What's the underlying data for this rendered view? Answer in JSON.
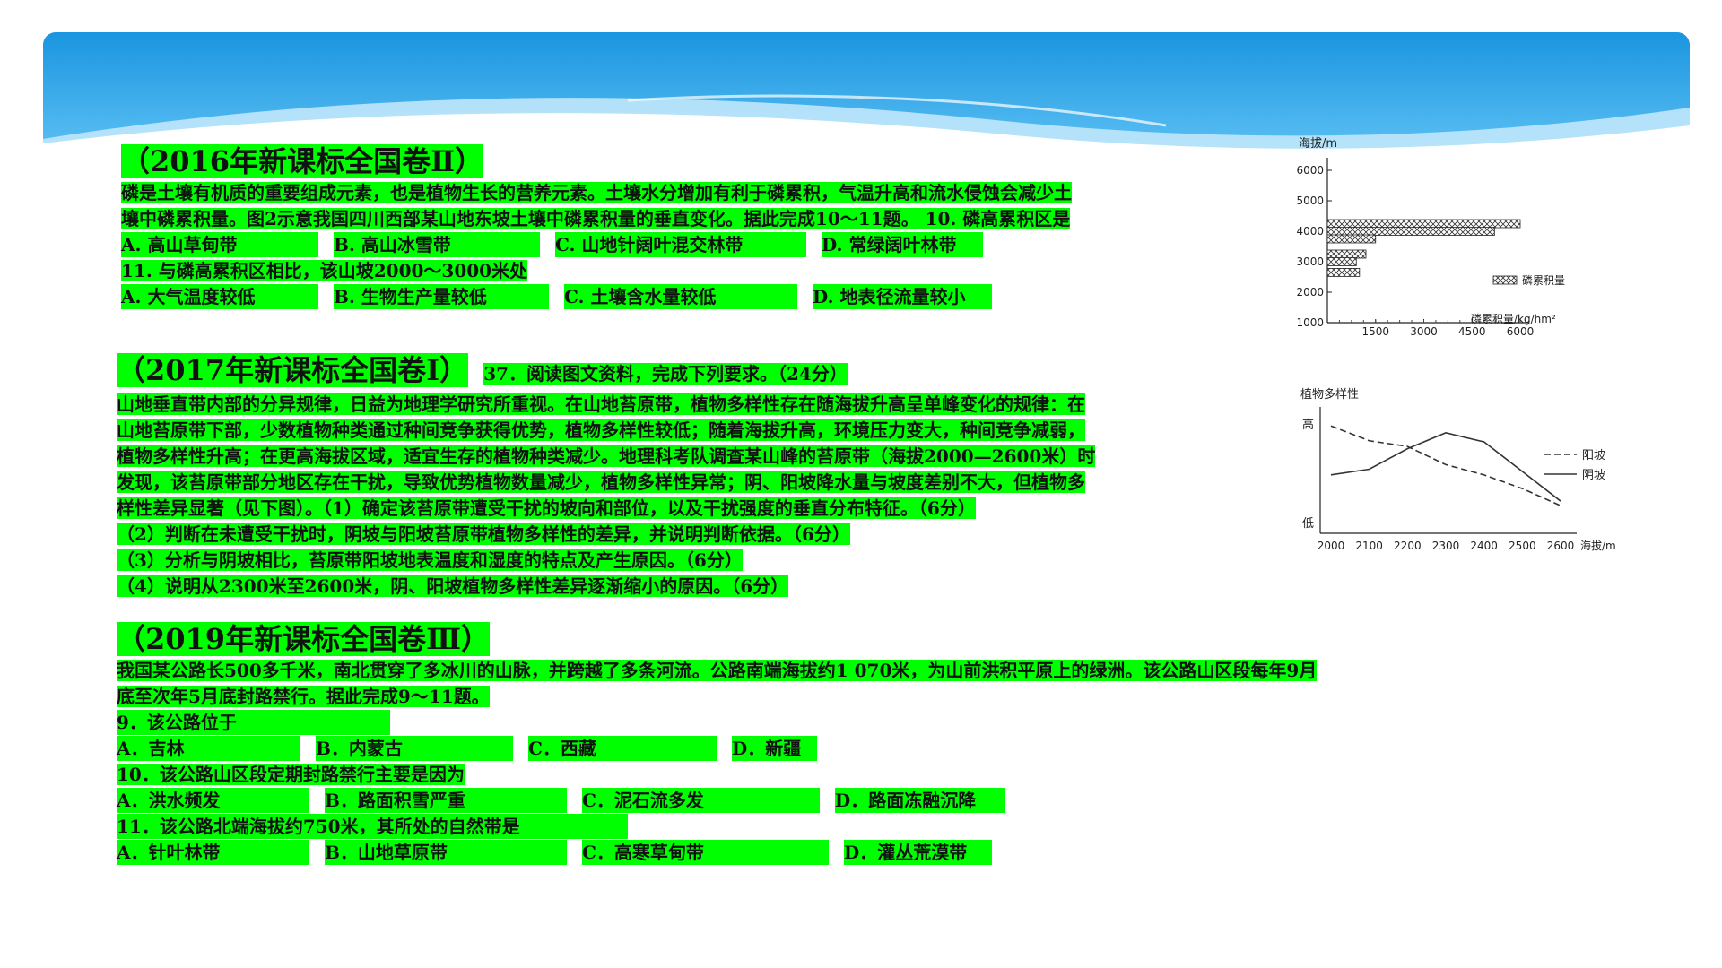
{
  "q2016": {
    "title": "（2016年新课标全国卷Ⅱ）",
    "line1": "磷是土壤有机质的重要组成元素，也是植物生长的营养元素。土壤水分增加有利于磷累积，气温升高和流水侵蚀会减少土",
    "line2": "壤中磷累积量。图2示意我国四川西部某山地东坡土壤中磷累积量的垂直变化。据此完成10～11题。 10. 磷高累积区是",
    "q10_options": [
      "A. 高山草甸带",
      "B. 高山冰雪带",
      "C. 山地针阔叶混交林带",
      "D. 常绿阔叶林带"
    ],
    "q11_stem": "11. 与磷高累积区相比，该山坡2000～3000米处",
    "q11_options": [
      "A. 大气温度较低",
      "B. 生物生产量较低",
      "C. 土壤含水量较低",
      "D. 地表径流量较小"
    ]
  },
  "q2017": {
    "title": "（2017年新课标全国卷Ⅰ）",
    "title_tail": "37．阅读图文资料，完成下列要求。（24分）",
    "lines": [
      "山地垂直带内部的分异规律，日益为地理学研究所重视。在山地苔原带，植物多样性存在随海拔升高呈单峰变化的规律：在",
      "山地苔原带下部，少数植物种类通过种间竞争获得优势，植物多样性较低；随着海拔升高，环境压力变大，种间竞争减弱，",
      "植物多样性升高；在更高海拔区域，适宜生存的植物种类减少。地理科考队调查某山峰的苔原带（海拔2000—2600米）时",
      "发现，该苔原带部分地区存在干扰，导致优势植物数量减少，植物多样性异常；阴、阳坡降水量与坡度差别不大，但植物多",
      "样性差异显著（见下图）。（1）确定该苔原带遭受干扰的坡向和部位，以及干扰强度的垂直分布特征。（6分）",
      "（2）判断在未遭受干扰时，阴坡与阳坡苔原带植物多样性的差异，并说明判断依据。（6分）",
      "（3）分析与阴坡相比，苔原带阳坡地表温度和湿度的特点及产生原因。（6分）",
      "（4）说明从2300米至2600米，阴、阳坡植物多样性差异逐渐缩小的原因。（6分）"
    ]
  },
  "q2019": {
    "title": "（2019年新课标全国卷Ⅲ）",
    "line1": "我国某公路长500多千米，南北贯穿了多冰川的山脉，并跨越了多条河流。公路南端海拔约1 070米，为山前洪积平原上的绿洲。该公路山区段每年9月",
    "line2": "底至次年5月底封路禁行。据此完成9～11题。",
    "q9_stem": "9．该公路位于",
    "q9_options": [
      "A．吉林",
      "B．内蒙古",
      "C．西藏",
      "D．新疆"
    ],
    "q10_stem": "10．该公路山区段定期封路禁行主要是因为",
    "q10_options": [
      "A．洪水频发",
      "B．路面积雪严重",
      "C．泥石流多发",
      "D．路面冻融沉降"
    ],
    "q11_stem": "11．该公路北端海拔约750米，其所处的自然带是",
    "q11_options": [
      "A．针叶林带",
      "B．山地草原带",
      "C．高寒草甸带",
      "D．灌丛荒漠带"
    ]
  },
  "chart_data": [
    {
      "type": "bar",
      "orientation": "horizontal",
      "ylabel": "海拔/m",
      "xlabel": "磷累积量/kg/hm²",
      "legend": "磷累积量",
      "legend_position": "right",
      "yticks": [
        "1000",
        "2000",
        "3000",
        "4000",
        "5000",
        "6000"
      ],
      "xticks": [
        "1500",
        "3000",
        "4500",
        "6000"
      ],
      "ylim": [
        1000,
        6000
      ],
      "xlim": [
        0,
        6000
      ],
      "y": [
        4250,
        4000,
        3750,
        3250,
        3000,
        2650
      ],
      "values": [
        6000,
        5200,
        1500,
        1200,
        900,
        1000
      ]
    },
    {
      "type": "line",
      "ylabel": "植物多样性",
      "ytick_labels": [
        "高",
        "低"
      ],
      "xlabel": "海拔/m",
      "categories": [
        "2000",
        "2100",
        "2200",
        "2300",
        "2400",
        "2500",
        "2600"
      ],
      "legend_position": "right",
      "series": [
        {
          "name": "阳坡",
          "style": "dashed",
          "values": [
            0.88,
            0.75,
            0.7,
            0.54,
            0.45,
            0.33,
            0.18
          ]
        },
        {
          "name": "阴坡",
          "style": "solid",
          "values": [
            0.45,
            0.5,
            0.68,
            0.82,
            0.74,
            0.48,
            0.22
          ]
        }
      ]
    }
  ]
}
